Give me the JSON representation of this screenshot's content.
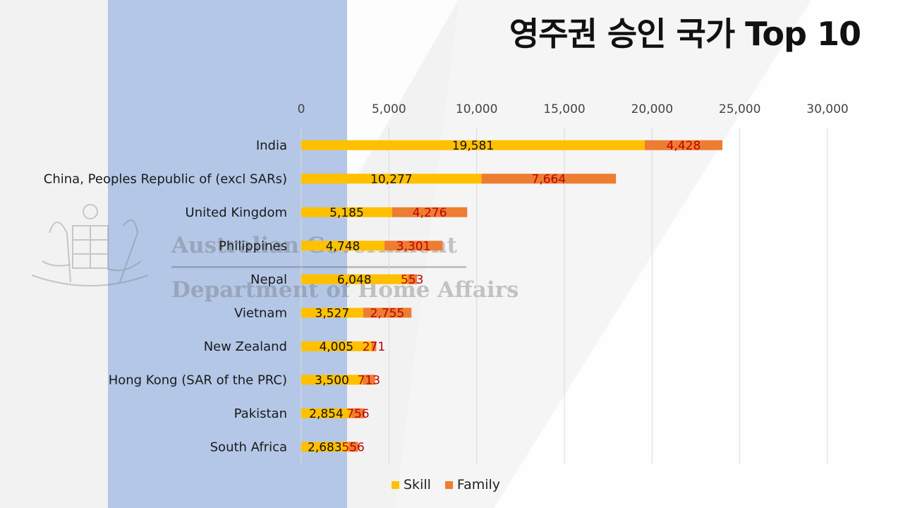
{
  "slide": {
    "title": "영주권 승인 국가 Top 10",
    "watermark": {
      "line1": "Australian Government",
      "line2": "Department of Home Affairs",
      "emblem": "coat-of-arms-icon"
    }
  },
  "colors": {
    "skill": "#FFC000",
    "family": "#ED7D31",
    "family_label": "#C00000",
    "panel": "#B4C7E7",
    "grid": "#D9D9D9",
    "text": "#1a1a1a"
  },
  "chart_data": {
    "type": "bar",
    "orientation": "horizontal",
    "stacked": true,
    "title": "영주권 승인 국가 Top 10",
    "categories": [
      "India",
      "China, Peoples Republic of (excl SARs)",
      "United Kingdom",
      "Philippines",
      "Nepal",
      "Vietnam",
      "New Zealand",
      "Hong Kong (SAR of the PRC)",
      "Pakistan",
      "South Africa"
    ],
    "series": [
      {
        "name": "Skill",
        "values": [
          19581,
          10277,
          5185,
          4748,
          6048,
          3527,
          4005,
          3500,
          2854,
          2683
        ]
      },
      {
        "name": "Family",
        "values": [
          4428,
          7664,
          4276,
          3301,
          553,
          2755,
          271,
          713,
          756,
          556
        ]
      }
    ],
    "xlim": [
      0,
      30000
    ],
    "x_ticks": [
      0,
      5000,
      10000,
      15000,
      20000,
      25000,
      30000
    ],
    "x_tick_labels": [
      "0",
      "5,000",
      "10,000",
      "15,000",
      "20,000",
      "25,000",
      "30,000"
    ],
    "axis_position": "top",
    "grid": true,
    "legend_position": "bottom"
  }
}
